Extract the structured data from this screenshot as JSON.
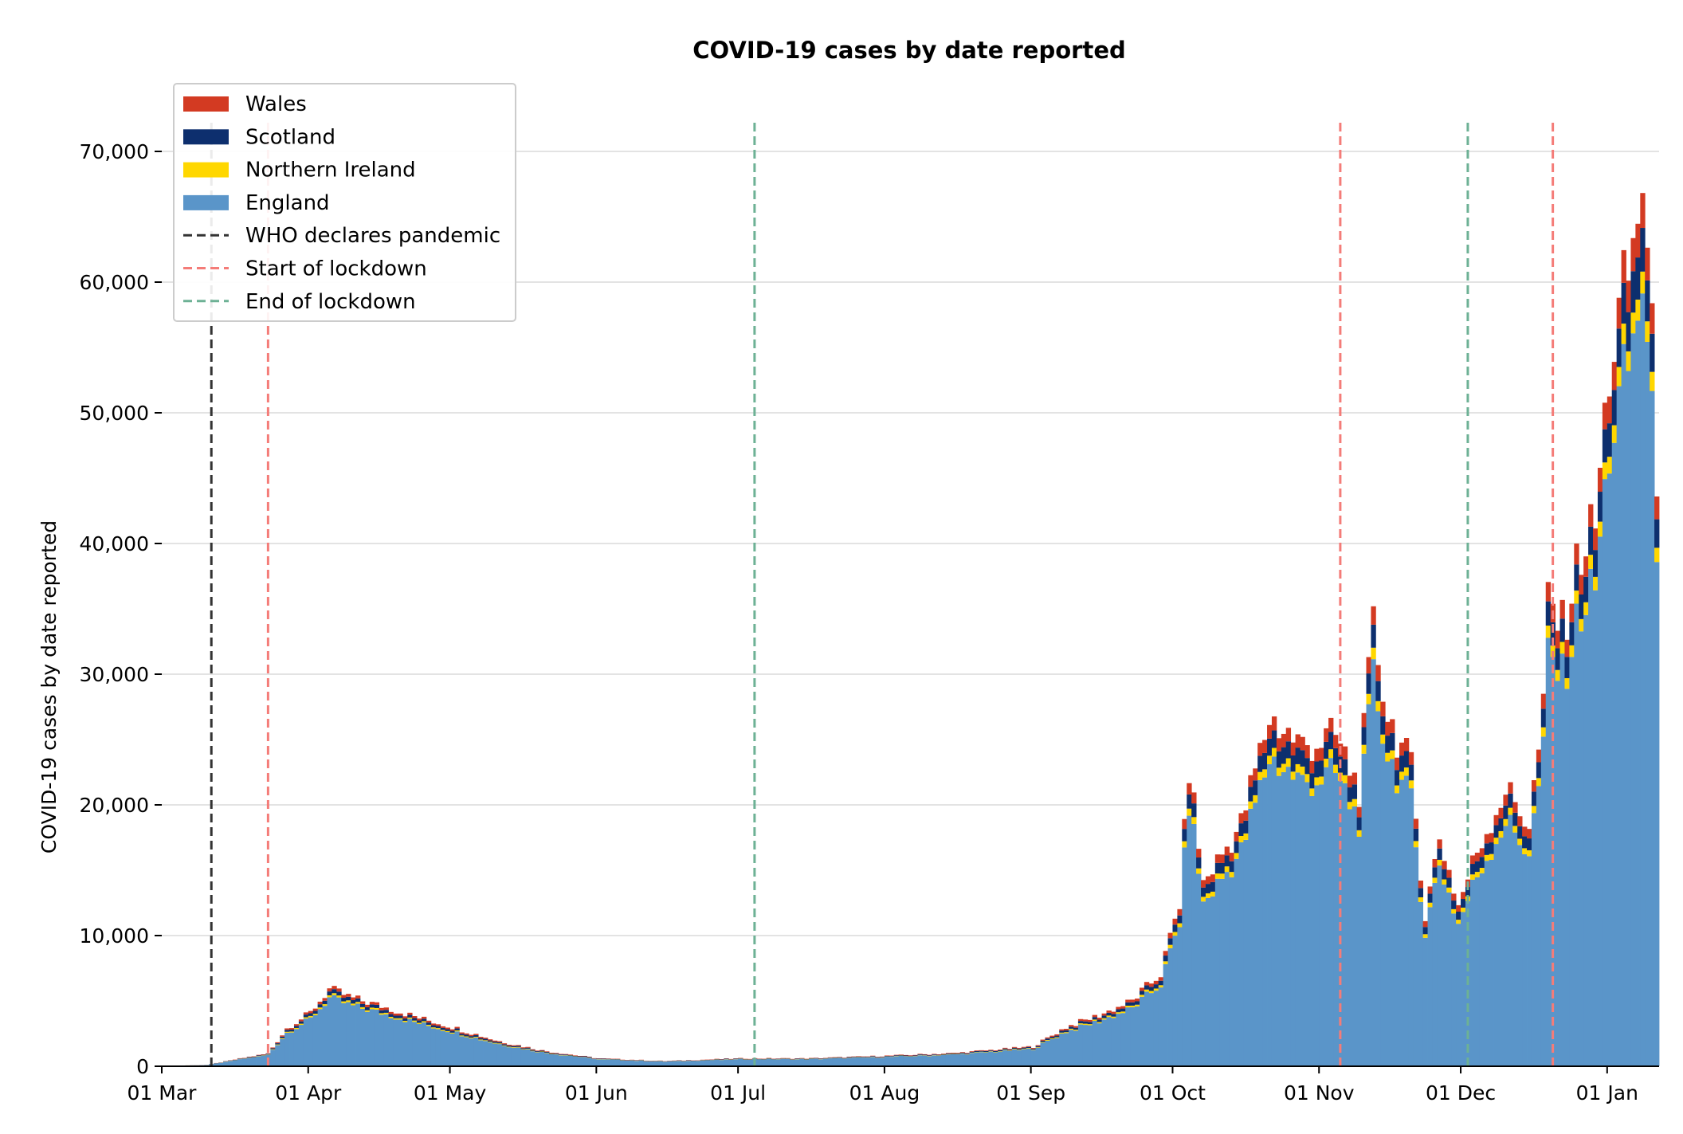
{
  "chart_data": {
    "type": "bar",
    "stacked": true,
    "title": "COVID-19 cases by date reported",
    "xlabel": "",
    "ylabel": "COVID-19 cases by date reported",
    "ylim": [
      0,
      75000
    ],
    "yticks": [
      0,
      10000,
      20000,
      30000,
      40000,
      50000,
      60000,
      70000
    ],
    "ytick_labels": [
      "0",
      "10,000",
      "20,000",
      "30,000",
      "40,000",
      "50,000",
      "60,000",
      "70,000"
    ],
    "grid": "horizontal",
    "legend_position": "top-left",
    "x_start": "2020-03-01",
    "xticks": [
      "2020-03-01",
      "2020-04-01",
      "2020-05-01",
      "2020-06-01",
      "2020-07-01",
      "2020-08-01",
      "2020-09-01",
      "2020-10-01",
      "2020-11-01",
      "2020-12-01",
      "2021-01-01"
    ],
    "xtick_labels": [
      "01 Mar",
      "01 Apr",
      "01 May",
      "01 Jun",
      "01 Jul",
      "01 Aug",
      "01 Sep",
      "01 Oct",
      "01 Nov",
      "01 Dec",
      "01 Jan"
    ],
    "xlim": [
      "2020-03-01",
      "2021-01-11"
    ],
    "series": [
      {
        "name": "Wales",
        "color": "#d33a22",
        "share": 0.04
      },
      {
        "name": "Scotland",
        "color": "#0d2f6e",
        "share": 0.05
      },
      {
        "name": "Northern Ireland",
        "color": "#ffd700",
        "share": 0.025
      },
      {
        "name": "England",
        "color": "#5a95c9",
        "share": 0.885
      }
    ],
    "annotations": [
      {
        "label": "WHO declares pandemic",
        "date": "2020-03-11",
        "color": "#333333"
      },
      {
        "label": "Start of lockdown",
        "date": "2020-03-23",
        "color": "#f47c78"
      },
      {
        "label": "End of lockdown",
        "date": "2020-07-04",
        "color": "#6db195"
      },
      {
        "label": "Start of lockdown",
        "date": "2020-11-05",
        "color": "#f47c78"
      },
      {
        "label": "End of lockdown",
        "date": "2020-12-02",
        "color": "#6db195"
      },
      {
        "label": "Start of lockdown",
        "date": "2020-12-20",
        "color": "#f47c78"
      }
    ],
    "legend": [
      {
        "label": "Wales",
        "kind": "patch",
        "color": "#d33a22"
      },
      {
        "label": "Scotland",
        "kind": "patch",
        "color": "#0d2f6e"
      },
      {
        "label": "Northern Ireland",
        "kind": "patch",
        "color": "#ffd700"
      },
      {
        "label": "England",
        "kind": "patch",
        "color": "#5a95c9"
      },
      {
        "label": "WHO declares pandemic",
        "kind": "dash",
        "color": "#333333"
      },
      {
        "label": "Start of lockdown",
        "kind": "dash",
        "color": "#f47c78"
      },
      {
        "label": "End of lockdown",
        "kind": "dash",
        "color": "#6db195"
      }
    ],
    "total_cases_keypoints": [
      [
        "2020-03-01",
        30
      ],
      [
        "2020-03-10",
        100
      ],
      [
        "2020-03-18",
        650
      ],
      [
        "2020-03-23",
        970
      ],
      [
        "2020-03-27",
        2900
      ],
      [
        "2020-04-01",
        4100
      ],
      [
        "2020-04-05",
        5900
      ],
      [
        "2020-04-10",
        5200
      ],
      [
        "2020-04-16",
        4600
      ],
      [
        "2020-04-24",
        3700
      ],
      [
        "2020-05-01",
        3000
      ],
      [
        "2020-05-10",
        2000
      ],
      [
        "2020-05-20",
        1200
      ],
      [
        "2020-06-01",
        600
      ],
      [
        "2020-06-15",
        400
      ],
      [
        "2020-07-01",
        600
      ],
      [
        "2020-07-15",
        600
      ],
      [
        "2020-08-01",
        800
      ],
      [
        "2020-08-15",
        1000
      ],
      [
        "2020-09-01",
        1500
      ],
      [
        "2020-09-08",
        3000
      ],
      [
        "2020-09-15",
        3900
      ],
      [
        "2020-09-22",
        5000
      ],
      [
        "2020-09-28",
        7100
      ],
      [
        "2020-10-02",
        12500
      ],
      [
        "2020-10-04",
        22900
      ],
      [
        "2020-10-07",
        14000
      ],
      [
        "2020-10-15",
        18500
      ],
      [
        "2020-10-21",
        26700
      ],
      [
        "2020-10-28",
        24500
      ],
      [
        "2020-11-04",
        25200
      ],
      [
        "2020-11-09",
        21200
      ],
      [
        "2020-11-12",
        33500
      ],
      [
        "2020-11-15",
        27000
      ],
      [
        "2020-11-20",
        22700
      ],
      [
        "2020-11-23",
        11500
      ],
      [
        "2020-11-26",
        17600
      ],
      [
        "2020-11-30",
        12300
      ],
      [
        "2020-12-04",
        16500
      ],
      [
        "2020-12-10",
        21200
      ],
      [
        "2020-12-15",
        18500
      ],
      [
        "2020-12-18",
        27000
      ],
      [
        "2020-12-19",
        35900
      ],
      [
        "2020-12-22",
        33400
      ],
      [
        "2020-12-26",
        39500
      ],
      [
        "2020-12-29",
        41400
      ],
      [
        "2021-01-01",
        53300
      ],
      [
        "2021-01-04",
        58800
      ],
      [
        "2021-01-06",
        62300
      ],
      [
        "2021-01-08",
        68100
      ],
      [
        "2021-01-10",
        54900
      ],
      [
        "2021-01-11",
        46200
      ]
    ]
  }
}
